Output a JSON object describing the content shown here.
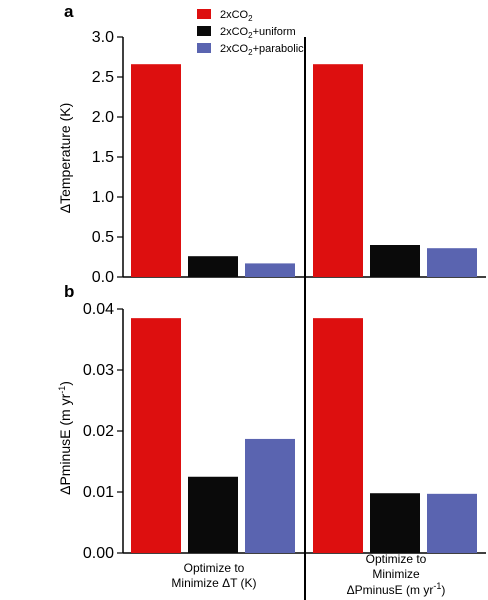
{
  "chart_data": {
    "type": "bar",
    "groups": [
      {
        "label_line1": "Optimize to",
        "label_line2": "Minimize ΔT (K)"
      },
      {
        "label_line1": "Optimize to",
        "label_line2": "Minimize",
        "label_line3_pre": "ΔPminusE (m yr",
        "label_line3_sup": "-1",
        "label_line3_post": ")"
      }
    ],
    "series": [
      {
        "name_main": "2xCO",
        "name_sub": "2",
        "name_rest": "",
        "color": "#dd0f0f"
      },
      {
        "name_main": "2xCO",
        "name_sub": "2",
        "name_rest": "+uniform",
        "color": "#0a0a0a"
      },
      {
        "name_main": "2xCO",
        "name_sub": "2",
        "name_rest": "+parabolic",
        "color": "#5a64b0"
      }
    ],
    "panels": [
      {
        "letter": "a",
        "ylabel": "ΔTemperature (K)",
        "ylim": [
          0,
          3.0
        ],
        "ticks": [
          "0.0",
          "0.5",
          "1.0",
          "1.5",
          "2.0",
          "2.5",
          "3.0"
        ],
        "tick_values": [
          0,
          0.5,
          1.0,
          1.5,
          2.0,
          2.5,
          3.0
        ],
        "values": [
          [
            2.66,
            0.26,
            0.17
          ],
          [
            2.66,
            0.4,
            0.36
          ]
        ]
      },
      {
        "letter": "b",
        "ylabel_pre": "ΔPminusE (m yr",
        "ylabel_sup": "-1",
        "ylabel_post": ")",
        "ylim": [
          0,
          0.04
        ],
        "ticks": [
          "0.00",
          "0.01",
          "0.02",
          "0.03",
          "0.04"
        ],
        "tick_values": [
          0,
          0.01,
          0.02,
          0.03,
          0.04
        ],
        "values": [
          [
            0.0385,
            0.0125,
            0.0187
          ],
          [
            0.0385,
            0.0098,
            0.0097
          ]
        ]
      }
    ]
  }
}
